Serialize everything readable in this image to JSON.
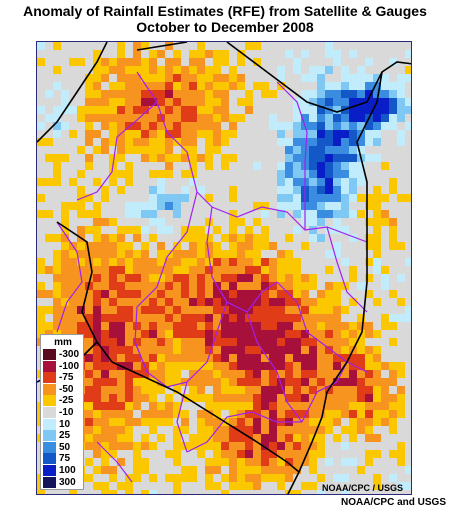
{
  "title": {
    "line1": "Anomaly of Rainfall Estimates (RFE) from Satellite & Gauges",
    "line2": "October to December 2008"
  },
  "legend": {
    "unit": "mm",
    "items": [
      {
        "label": "-300",
        "color": "#5a0a1e"
      },
      {
        "label": "-100",
        "color": "#a8103c"
      },
      {
        "label": "-75",
        "color": "#e03c18"
      },
      {
        "label": "-50",
        "color": "#f79420"
      },
      {
        "label": "-25",
        "color": "#fbc800"
      },
      {
        "label": "-10",
        "color": "#d9d9d9"
      },
      {
        "label": "10",
        "color": "#c0ecfc"
      },
      {
        "label": "25",
        "color": "#80c8f4"
      },
      {
        "label": "50",
        "color": "#3a8ce0"
      },
      {
        "label": "75",
        "color": "#1458c8"
      },
      {
        "label": "100",
        "color": "#0a1ec8"
      },
      {
        "label": "300",
        "color": "#14145a"
      }
    ]
  },
  "map": {
    "background_color": "#d9d9d9",
    "country_border_color": "#000000",
    "province_border_color": "#a020f0"
  },
  "credits": {
    "inner": "NOAA/CPC / USGS",
    "outer": "NOAA/CPC and USGS"
  }
}
